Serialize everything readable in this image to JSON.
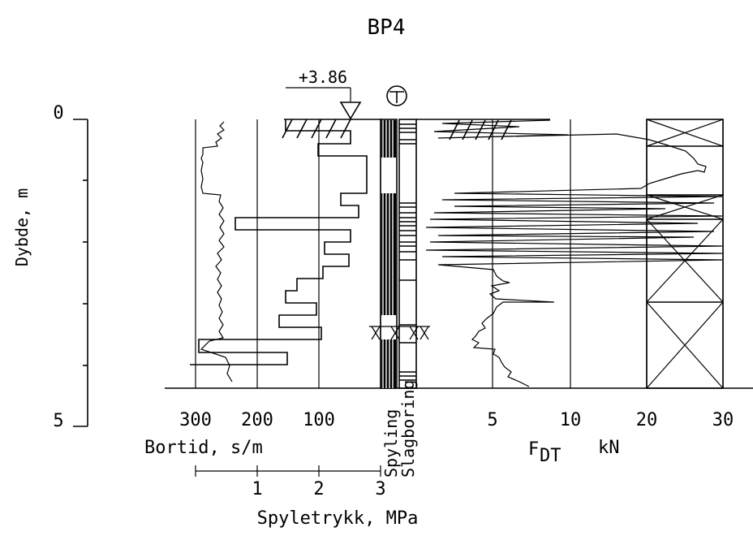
{
  "title": "BP4",
  "elevation": "+3.86",
  "depth_axis": {
    "label": "Dybde, m",
    "ticks": [
      "0",
      "5"
    ]
  },
  "bortid_axis": {
    "label": "Bortid, s/m",
    "ticks": [
      "300",
      "200",
      "100"
    ]
  },
  "spyletrykk_axis": {
    "label": "Spyletrykk, MPa",
    "ticks": [
      "1",
      "2",
      "3"
    ]
  },
  "column_labels": {
    "spyling": "Spyling",
    "slagboring": "Slagboring"
  },
  "force_axis": {
    "label_main": "F",
    "label_sub": "DT",
    "label_unit": "kN",
    "ticks": [
      "5",
      "10",
      "20",
      "30"
    ]
  },
  "colors": {
    "ink": "#000000",
    "background": "#ffffff"
  },
  "symbols": {
    "borehole_marker": "t-in-circle-icon",
    "elevation_marker": "triangle-down-icon"
  }
}
